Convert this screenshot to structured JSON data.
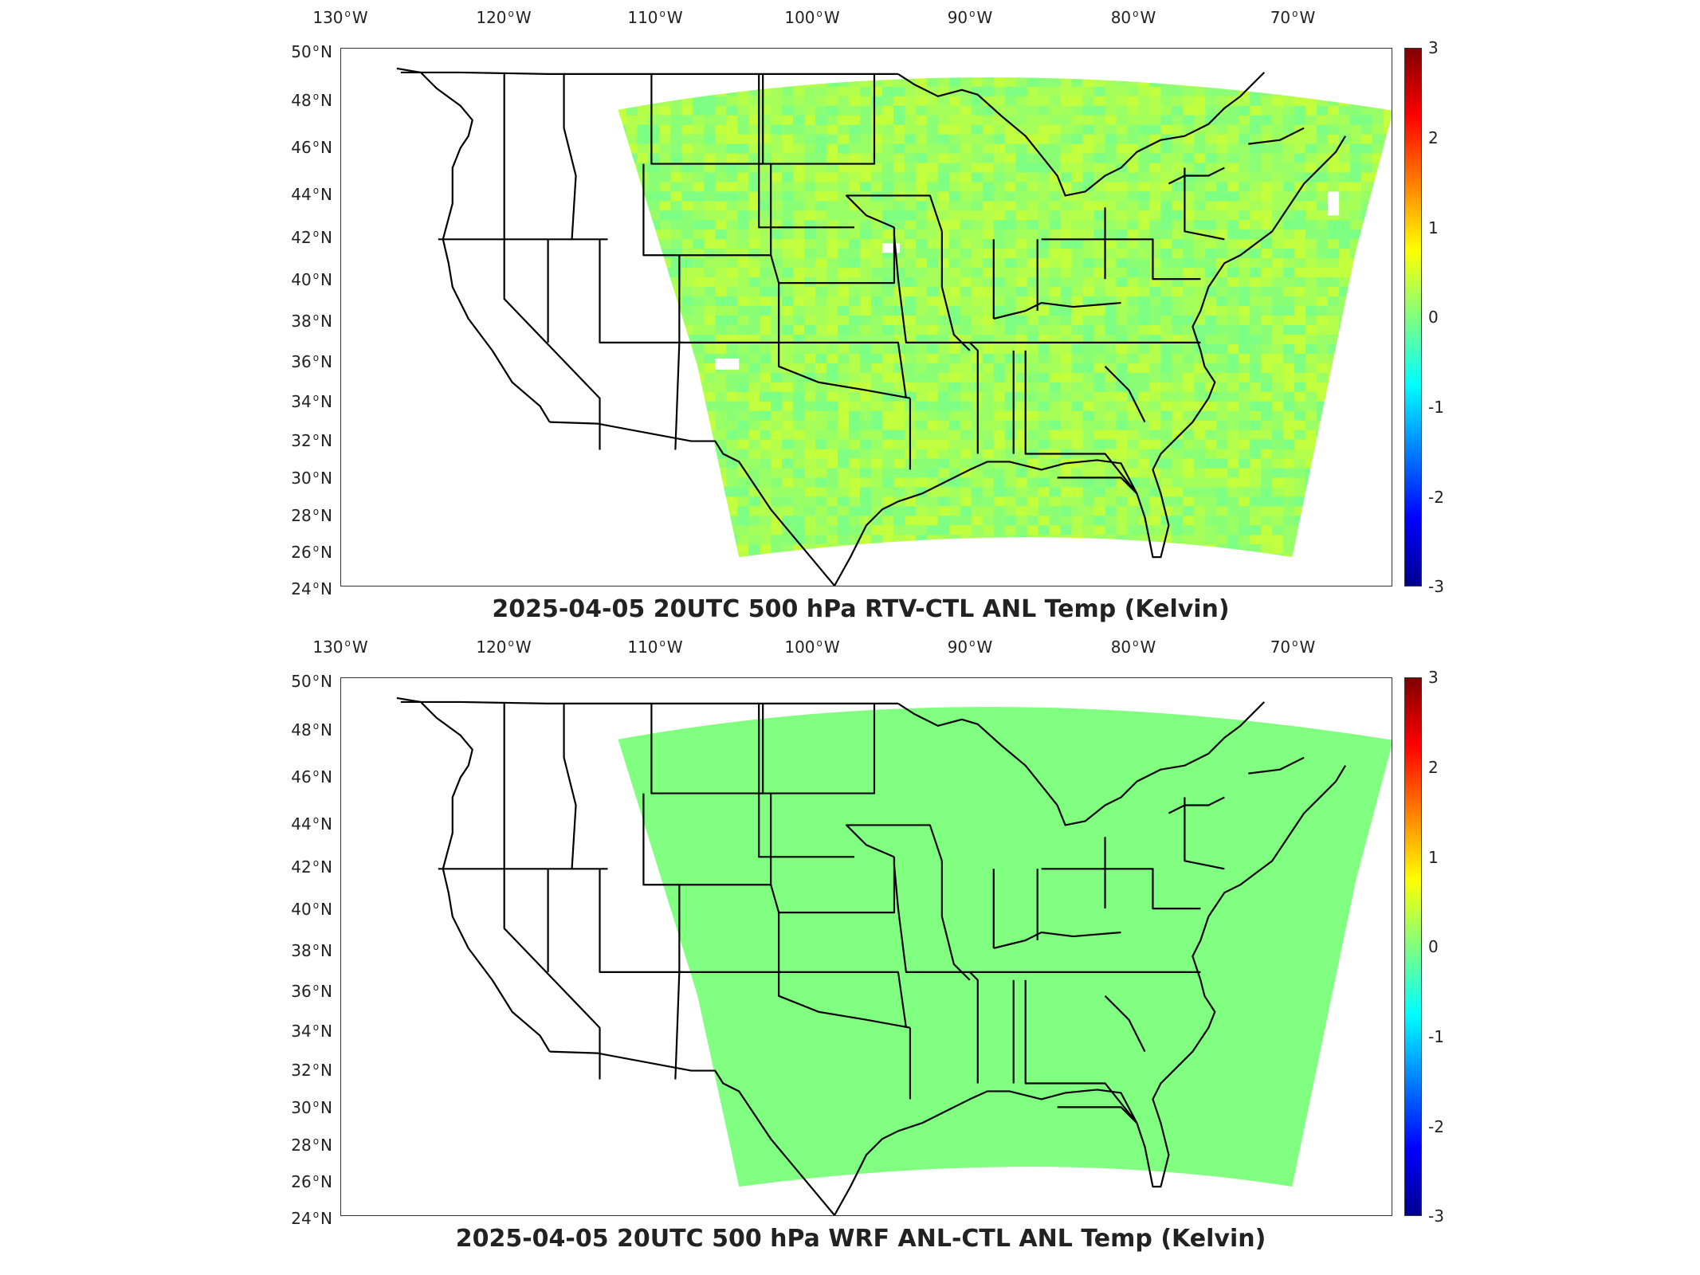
{
  "lon_labels": [
    {
      "deg": "130",
      "hemi": "W"
    },
    {
      "deg": "120",
      "hemi": "W"
    },
    {
      "deg": "110",
      "hemi": "W"
    },
    {
      "deg": "100",
      "hemi": "W"
    },
    {
      "deg": "90",
      "hemi": "W"
    },
    {
      "deg": "80",
      "hemi": "W"
    },
    {
      "deg": "70",
      "hemi": "W"
    }
  ],
  "lat_labels": [
    {
      "deg": "50",
      "hemi": "N"
    },
    {
      "deg": "48",
      "hemi": "N"
    },
    {
      "deg": "46",
      "hemi": "N"
    },
    {
      "deg": "44",
      "hemi": "N"
    },
    {
      "deg": "42",
      "hemi": "N"
    },
    {
      "deg": "40",
      "hemi": "N"
    },
    {
      "deg": "38",
      "hemi": "N"
    },
    {
      "deg": "36",
      "hemi": "N"
    },
    {
      "deg": "34",
      "hemi": "N"
    },
    {
      "deg": "32",
      "hemi": "N"
    },
    {
      "deg": "30",
      "hemi": "N"
    },
    {
      "deg": "28",
      "hemi": "N"
    },
    {
      "deg": "26",
      "hemi": "N"
    },
    {
      "deg": "24",
      "hemi": "N"
    }
  ],
  "colorbar": {
    "ticks": [
      "3",
      "2",
      "1",
      "0",
      "-1",
      "-2",
      "-3"
    ],
    "colormap": [
      "#00008f",
      "#0000ff",
      "#007fff",
      "#00ffff",
      "#7fff7f",
      "#ffff00",
      "#ff7f00",
      "#ff0000",
      "#7f0000"
    ]
  },
  "panels": [
    {
      "title": "2025-04-05 20UTC 500 hPa RTV-CTL ANL Temp (Kelvin)",
      "field_style": "noisy",
      "field_colors": [
        "#a6ff59",
        "#8cff73",
        "#bfff40",
        "#59ffa6",
        "#d9ff26",
        "#73ff8c"
      ]
    },
    {
      "title": "2025-04-05 20UTC 500 hPa WRF ANL-CTL ANL Temp (Kelvin)",
      "field_style": "uniform",
      "field_colors": [
        "#80ff80"
      ]
    }
  ]
}
